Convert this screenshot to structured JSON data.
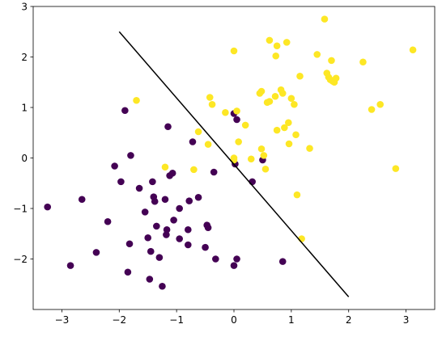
{
  "chart_data": {
    "type": "scatter",
    "title": "",
    "xlabel": "",
    "ylabel": "",
    "xlim": [
      -3.5,
      3.5
    ],
    "ylim": [
      -3.0,
      3.0
    ],
    "x_ticks": [
      -3,
      -2,
      -1,
      0,
      1,
      2,
      3
    ],
    "x_tick_labels": [
      "−3",
      "−2",
      "−1",
      "0",
      "1",
      "2",
      "3"
    ],
    "y_ticks": [
      -2,
      -1,
      0,
      1,
      2,
      3
    ],
    "y_tick_labels": [
      "−2",
      "−1",
      "0",
      "1",
      "2",
      "3"
    ],
    "grid": false,
    "legend": "none",
    "colors": {
      "class_a": "#440154",
      "class_b": "#fde725",
      "boundary": "#000000"
    },
    "boundary_line": {
      "x": [
        -2.0,
        2.0
      ],
      "y": [
        2.5,
        -2.75
      ]
    },
    "series": [
      {
        "color_key": "class_a",
        "points": [
          [
            -3.25,
            -0.97
          ],
          [
            -2.85,
            -2.13
          ],
          [
            -2.65,
            -0.82
          ],
          [
            -2.4,
            -1.87
          ],
          [
            -2.2,
            -1.26
          ],
          [
            -2.08,
            -0.16
          ],
          [
            -1.97,
            -0.47
          ],
          [
            -1.9,
            0.94
          ],
          [
            -1.85,
            -2.26
          ],
          [
            -1.82,
            -1.7
          ],
          [
            -1.8,
            0.05
          ],
          [
            -1.65,
            -0.6
          ],
          [
            -1.55,
            -1.07
          ],
          [
            -1.5,
            -1.58
          ],
          [
            -1.47,
            -2.4
          ],
          [
            -1.45,
            -1.85
          ],
          [
            -1.42,
            -0.47
          ],
          [
            -1.4,
            -0.77
          ],
          [
            -1.38,
            -0.86
          ],
          [
            -1.35,
            -1.35
          ],
          [
            -1.3,
            -1.97
          ],
          [
            -1.25,
            -2.54
          ],
          [
            -1.2,
            -0.82
          ],
          [
            -1.18,
            -1.52
          ],
          [
            -1.17,
            -1.42
          ],
          [
            -1.15,
            0.62
          ],
          [
            -1.12,
            -0.35
          ],
          [
            -1.07,
            -0.3
          ],
          [
            -1.05,
            -1.23
          ],
          [
            -0.95,
            -1.0
          ],
          [
            -0.95,
            -1.6
          ],
          [
            -0.8,
            -1.72
          ],
          [
            -0.8,
            -1.42
          ],
          [
            -0.78,
            -0.85
          ],
          [
            -0.72,
            0.32
          ],
          [
            -0.62,
            -0.78
          ],
          [
            -0.5,
            -1.77
          ],
          [
            -0.47,
            -1.33
          ],
          [
            -0.45,
            -1.38
          ],
          [
            -0.35,
            -0.28
          ],
          [
            -0.32,
            -2.0
          ],
          [
            0.0,
            0.88
          ],
          [
            0.0,
            -2.13
          ],
          [
            0.02,
            -0.12
          ],
          [
            0.05,
            -2.0
          ],
          [
            0.05,
            0.76
          ],
          [
            0.32,
            -0.47
          ],
          [
            0.5,
            -0.04
          ],
          [
            0.85,
            -2.05
          ]
        ]
      },
      {
        "color_key": "class_b",
        "points": [
          [
            -1.7,
            1.14
          ],
          [
            -1.2,
            -0.18
          ],
          [
            -0.7,
            -0.23
          ],
          [
            -0.62,
            0.52
          ],
          [
            -0.45,
            0.27
          ],
          [
            -0.42,
            1.2
          ],
          [
            -0.38,
            1.06
          ],
          [
            -0.15,
            0.9
          ],
          [
            0.0,
            2.12
          ],
          [
            0.0,
            -0.04
          ],
          [
            0.05,
            0.93
          ],
          [
            0.08,
            0.32
          ],
          [
            0.2,
            0.65
          ],
          [
            0.3,
            -0.02
          ],
          [
            0.48,
            0.18
          ],
          [
            0.52,
            0.05
          ],
          [
            0.55,
            -0.22
          ],
          [
            0.58,
            1.1
          ],
          [
            0.62,
            2.33
          ],
          [
            0.72,
            1.22
          ],
          [
            0.73,
            2.02
          ],
          [
            0.75,
            2.22
          ],
          [
            0.75,
            0.55
          ],
          [
            0.82,
            1.35
          ],
          [
            0.85,
            1.28
          ],
          [
            0.88,
            0.6
          ],
          [
            0.92,
            2.29
          ],
          [
            0.95,
            0.7
          ],
          [
            0.96,
            0.28
          ],
          [
            1.0,
            1.18
          ],
          [
            1.05,
            1.06
          ],
          [
            1.08,
            0.46
          ],
          [
            1.1,
            -0.73
          ],
          [
            1.15,
            1.62
          ],
          [
            1.18,
            -1.6
          ],
          [
            1.32,
            0.19
          ],
          [
            1.45,
            2.05
          ],
          [
            1.58,
            2.75
          ],
          [
            1.62,
            1.68
          ],
          [
            1.65,
            1.6
          ],
          [
            1.68,
            1.55
          ],
          [
            1.7,
            1.93
          ],
          [
            1.72,
            1.52
          ],
          [
            1.75,
            1.5
          ],
          [
            1.78,
            1.58
          ],
          [
            2.25,
            1.9
          ],
          [
            2.4,
            0.96
          ],
          [
            2.55,
            1.06
          ],
          [
            2.82,
            -0.21
          ],
          [
            3.12,
            2.14
          ],
          [
            0.48,
            1.32
          ],
          [
            0.62,
            1.12
          ],
          [
            0.45,
            1.28
          ],
          [
            0.0,
            0.0
          ]
        ]
      }
    ]
  }
}
